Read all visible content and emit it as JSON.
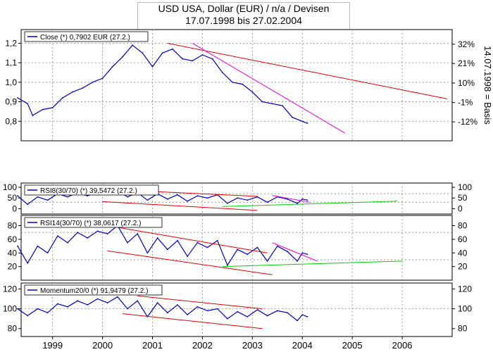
{
  "header": {
    "title": "USD USA, Dollar (EUR) / n/a / Devisen",
    "subtitle": "17.07.1998 bis 27.02.2004"
  },
  "colors": {
    "series": "#0000c0",
    "trend_red": "#e00000",
    "trend_magenta": "#e000e0",
    "trend_green": "#00d000",
    "grid": "#888888",
    "frame": "#000000"
  },
  "chart_data": [
    {
      "type": "line",
      "legend": "Close (*) 0,7902 EUR (27.2.)",
      "y_ticks": [
        0.8,
        0.9,
        1.0,
        1.1,
        1.2
      ],
      "y_tick_labels": [
        "0,8",
        "0,9",
        "1,0",
        "1,1",
        "1,2"
      ],
      "right_ticks": [
        {
          "label": "32%",
          "y": 1.195
        },
        {
          "label": "21%",
          "y": 1.096
        },
        {
          "label": "10%",
          "y": 0.996
        },
        {
          "label": "-1%",
          "y": 0.896
        },
        {
          "label": "-12%",
          "y": 0.797
        }
      ],
      "right_axis_label": "14.07.1998 = Basis",
      "ylim": [
        0.7,
        1.27
      ],
      "x": [
        1998.3,
        1998.5,
        1998.6,
        1998.8,
        1999.0,
        1999.2,
        1999.4,
        1999.6,
        1999.8,
        2000.0,
        2000.2,
        2000.4,
        2000.6,
        2000.8,
        2001.0,
        2001.2,
        2001.4,
        2001.6,
        2001.8,
        2002.0,
        2002.2,
        2002.4,
        2002.6,
        2002.8,
        2003.0,
        2003.2,
        2003.4,
        2003.6,
        2003.8,
        2004.0,
        2004.1
      ],
      "values": [
        0.92,
        0.89,
        0.83,
        0.86,
        0.87,
        0.92,
        0.95,
        0.97,
        1.0,
        1.02,
        1.08,
        1.13,
        1.19,
        1.15,
        1.08,
        1.15,
        1.17,
        1.12,
        1.11,
        1.14,
        1.12,
        1.05,
        1.0,
        0.99,
        0.95,
        0.9,
        0.89,
        0.88,
        0.82,
        0.8,
        0.79
      ],
      "trendlines": [
        {
          "color": "red",
          "from": [
            2001.3,
            1.2
          ],
          "to": [
            2006.9,
            0.915
          ]
        },
        {
          "color": "magenta",
          "from": [
            2001.8,
            1.2
          ],
          "to": [
            2004.85,
            0.74
          ]
        }
      ]
    },
    {
      "type": "line",
      "legend": "RSI8(30/70) (*) 39,5472 (27.2.)",
      "y_ticks": [
        0,
        50,
        100
      ],
      "ylim": [
        -25,
        120
      ],
      "gridlines": [
        30,
        70
      ],
      "x": [
        1998.3,
        1998.5,
        1998.7,
        1998.9,
        1999.1,
        1999.3,
        1999.5,
        1999.7,
        1999.9,
        2000.1,
        2000.3,
        2000.5,
        2000.7,
        2000.9,
        2001.1,
        2001.3,
        2001.5,
        2001.7,
        2001.9,
        2002.1,
        2002.3,
        2002.5,
        2002.7,
        2002.9,
        2003.1,
        2003.3,
        2003.5,
        2003.7,
        2003.9,
        2004.0,
        2004.1
      ],
      "values": [
        60,
        20,
        55,
        40,
        70,
        55,
        75,
        60,
        80,
        70,
        85,
        55,
        75,
        40,
        70,
        45,
        65,
        35,
        60,
        50,
        65,
        25,
        50,
        40,
        55,
        30,
        55,
        45,
        25,
        45,
        40
      ],
      "trendlines": [
        {
          "color": "red",
          "from": [
            2000.1,
            90
          ],
          "to": [
            2003.1,
            58
          ]
        },
        {
          "color": "red",
          "from": [
            2000.0,
            33
          ],
          "to": [
            2003.1,
            -8
          ]
        },
        {
          "color": "magenta",
          "from": [
            2003.4,
            62
          ],
          "to": [
            2004.15,
            30
          ]
        },
        {
          "color": "green",
          "from": [
            2002.4,
            10
          ],
          "to": [
            2005.9,
            35
          ]
        }
      ]
    },
    {
      "type": "line",
      "legend": "RSI14(30/70) (*) 38,0617 (27.2.)",
      "y_ticks": [
        20,
        40,
        60,
        80
      ],
      "ylim": [
        0,
        95
      ],
      "gridlines": [
        30,
        70
      ],
      "x": [
        1998.3,
        1998.5,
        1998.7,
        1998.9,
        1999.1,
        1999.3,
        1999.5,
        1999.7,
        1999.9,
        2000.1,
        2000.3,
        2000.5,
        2000.7,
        2000.9,
        2001.1,
        2001.3,
        2001.5,
        2001.7,
        2001.9,
        2002.1,
        2002.3,
        2002.5,
        2002.7,
        2002.9,
        2003.1,
        2003.3,
        2003.5,
        2003.7,
        2003.9,
        2004.0,
        2004.1
      ],
      "values": [
        50,
        25,
        50,
        40,
        65,
        55,
        70,
        62,
        72,
        68,
        80,
        55,
        68,
        40,
        62,
        45,
        58,
        35,
        55,
        48,
        58,
        22,
        45,
        38,
        48,
        28,
        50,
        42,
        28,
        40,
        38
      ],
      "trendlines": [
        {
          "color": "red",
          "from": [
            2000.1,
            80
          ],
          "to": [
            2003.3,
            40
          ]
        },
        {
          "color": "red",
          "from": [
            2000.1,
            43
          ],
          "to": [
            2003.4,
            8
          ]
        },
        {
          "color": "magenta",
          "from": [
            2003.4,
            55
          ],
          "to": [
            2004.3,
            28
          ]
        },
        {
          "color": "green",
          "from": [
            2002.4,
            20
          ],
          "to": [
            2006.0,
            28
          ]
        }
      ]
    },
    {
      "type": "line",
      "legend": "Momentum20/0 (*) 91,9479 (27.2.)",
      "y_ticks": [
        80,
        100,
        120
      ],
      "ylim": [
        72,
        126
      ],
      "gridlines": [
        100
      ],
      "x": [
        1998.3,
        1998.5,
        1998.7,
        1998.9,
        1999.1,
        1999.3,
        1999.5,
        1999.7,
        1999.9,
        2000.1,
        2000.3,
        2000.5,
        2000.7,
        2000.9,
        2001.1,
        2001.3,
        2001.5,
        2001.7,
        2001.9,
        2002.1,
        2002.3,
        2002.5,
        2002.7,
        2002.9,
        2003.1,
        2003.3,
        2003.5,
        2003.7,
        2003.9,
        2004.0,
        2004.1
      ],
      "values": [
        100,
        93,
        100,
        96,
        105,
        102,
        108,
        104,
        110,
        106,
        112,
        100,
        108,
        92,
        106,
        96,
        104,
        94,
        102,
        98,
        100,
        90,
        97,
        92,
        99,
        93,
        98,
        96,
        88,
        94,
        92
      ],
      "trendlines": [
        {
          "color": "red",
          "from": [
            2000.7,
            113
          ],
          "to": [
            2003.2,
            100
          ]
        },
        {
          "color": "red",
          "from": [
            2000.4,
            95
          ],
          "to": [
            2003.2,
            80
          ]
        }
      ]
    }
  ],
  "x_axis": {
    "ticks": [
      1999,
      2000,
      2001,
      2002,
      2003,
      2004,
      2005,
      2006
    ],
    "tick_labels": [
      "1999",
      "2000",
      "2001",
      "2002",
      "2003",
      "2004",
      "2005",
      "2006"
    ],
    "xlim": [
      1998.37,
      2007.0
    ]
  }
}
